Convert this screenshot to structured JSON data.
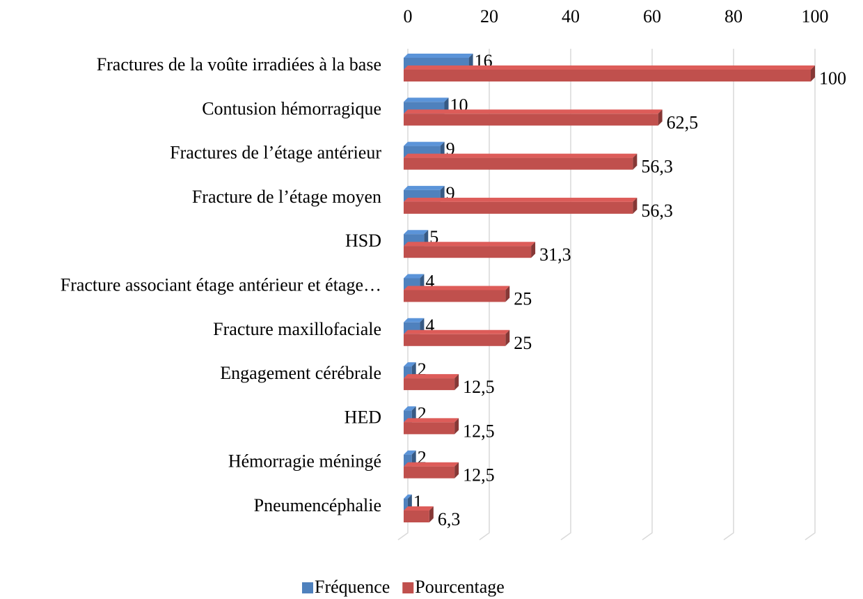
{
  "chart_data": {
    "type": "bar",
    "orientation": "horizontal",
    "three_d": true,
    "categories": [
      "Fractures de la voûte irradiées à la base",
      "Contusion hémorragique",
      "Fractures de l’étage antérieur",
      "Fracture de l’étage moyen",
      "HSD",
      "Fracture associant étage antérieur et étage…",
      "Fracture maxillofaciale",
      "Engagement cérébrale",
      "HED",
      "Hémorragie méningé",
      "Pneumencéphalie"
    ],
    "series": [
      {
        "name": "Fréquence",
        "color": "#4f81bd",
        "values": [
          16,
          10,
          9,
          9,
          5,
          4,
          4,
          2,
          2,
          2,
          1
        ]
      },
      {
        "name": "Pourcentage",
        "color": "#c0504d",
        "values": [
          100,
          62.5,
          56.3,
          56.3,
          31.3,
          25,
          25,
          12.5,
          12.5,
          12.5,
          6.3
        ],
        "value_labels": [
          "100",
          "62,5",
          "56,3",
          "56,3",
          "31,3",
          "25",
          "25",
          "12,5",
          "12,5",
          "12,5",
          "6,3"
        ]
      }
    ],
    "xlim": [
      0,
      100
    ],
    "xticks": [
      0,
      20,
      40,
      60,
      80,
      100
    ],
    "grid": true,
    "legend": "bottom"
  }
}
